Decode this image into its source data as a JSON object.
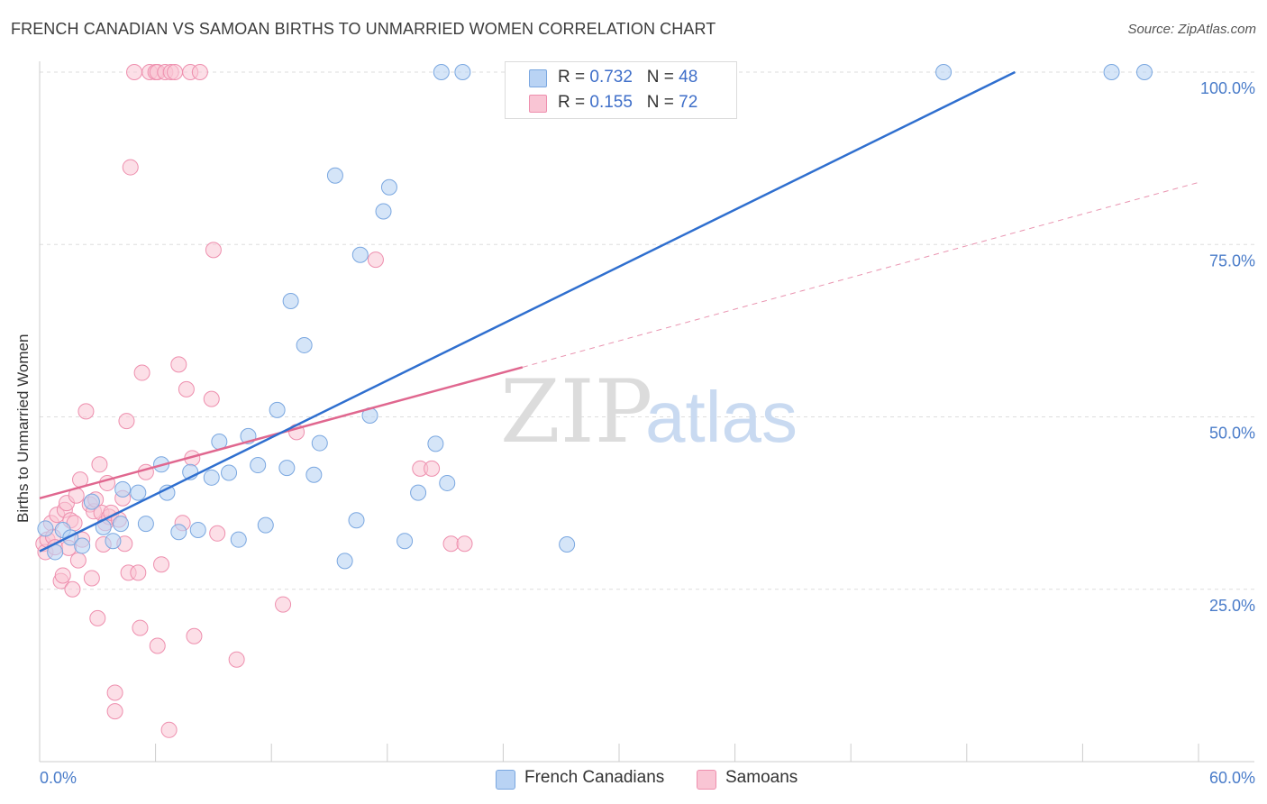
{
  "title": "FRENCH CANADIAN VS SAMOAN BIRTHS TO UNMARRIED WOMEN CORRELATION CHART",
  "source": "Source: ZipAtlas.com",
  "watermark": {
    "zip": "ZIP",
    "atlas": "atlas"
  },
  "legend": {
    "r_label": "R =",
    "n_label": "N =",
    "french_r": "0.732",
    "french_n": "48",
    "samoan_r": "0.155",
    "samoan_n": "72"
  },
  "bottom_legend": {
    "french": "French Canadians",
    "samoan": "Samoans"
  },
  "colors": {
    "french_fill": "#b9d3f4",
    "french_stroke": "#7aa7e0",
    "french_line": "#2f6fcf",
    "samoan_fill": "#f9c5d4",
    "samoan_stroke": "#ee8fae",
    "samoan_line": "#e0678f",
    "axis_text": "#4a7cc9",
    "grid": "#dddddd"
  },
  "chart_data": {
    "type": "scatter",
    "title": "FRENCH CANADIAN VS SAMOAN BIRTHS TO UNMARRIED WOMEN CORRELATION CHART",
    "xlabel": "",
    "ylabel": "Births to Unmarried Women",
    "xlim": [
      0,
      60
    ],
    "ylim": [
      0,
      100
    ],
    "x_tick_labels": [
      "0.0%",
      "60.0%"
    ],
    "y_tick_labels": [
      "25.0%",
      "50.0%",
      "75.0%",
      "100.0%"
    ],
    "y_ticks": [
      25,
      50,
      75,
      100
    ],
    "grid": true,
    "legend_position": "top-center",
    "series": [
      {
        "name": "French Canadians",
        "r": 0.732,
        "n": 48,
        "trend": {
          "x0": 0,
          "y0": 30.5,
          "x1": 50.5,
          "y1": 100
        },
        "points": [
          [
            0.3,
            33.8
          ],
          [
            0.8,
            30.4
          ],
          [
            1.2,
            33.6
          ],
          [
            1.6,
            32.5
          ],
          [
            2.2,
            31.3
          ],
          [
            3.3,
            34.0
          ],
          [
            2.7,
            37.7
          ],
          [
            3.8,
            32.0
          ],
          [
            4.2,
            34.5
          ],
          [
            4.3,
            39.5
          ],
          [
            5.5,
            34.5
          ],
          [
            5.1,
            39.0
          ],
          [
            6.3,
            43.1
          ],
          [
            6.6,
            39.0
          ],
          [
            7.2,
            33.3
          ],
          [
            7.8,
            42.0
          ],
          [
            8.2,
            33.6
          ],
          [
            8.9,
            41.2
          ],
          [
            9.3,
            46.4
          ],
          [
            9.8,
            41.9
          ],
          [
            10.3,
            32.2
          ],
          [
            10.8,
            47.2
          ],
          [
            11.3,
            43.0
          ],
          [
            11.7,
            34.3
          ],
          [
            12.3,
            51.0
          ],
          [
            12.8,
            42.6
          ],
          [
            13.0,
            66.8
          ],
          [
            13.7,
            60.4
          ],
          [
            14.2,
            41.6
          ],
          [
            14.5,
            46.2
          ],
          [
            15.3,
            85.0
          ],
          [
            16.4,
            35.0
          ],
          [
            15.8,
            29.1
          ],
          [
            16.6,
            73.5
          ],
          [
            17.1,
            50.2
          ],
          [
            17.8,
            79.8
          ],
          [
            18.1,
            83.3
          ],
          [
            18.9,
            32.0
          ],
          [
            19.6,
            39.0
          ],
          [
            20.5,
            46.1
          ],
          [
            21.1,
            40.4
          ],
          [
            20.8,
            100
          ],
          [
            21.9,
            100
          ],
          [
            27.3,
            31.5
          ],
          [
            34.5,
            100
          ],
          [
            46.8,
            100
          ],
          [
            55.5,
            100
          ],
          [
            57.2,
            100
          ]
        ]
      },
      {
        "name": "Samoans",
        "r": 0.155,
        "n": 72,
        "trend": {
          "x0": 0,
          "y0": 38.2,
          "x1": 25,
          "y1": 57.2,
          "ext_x1": 60,
          "ext_y1": 84.0
        },
        "points": [
          [
            0.2,
            31.6
          ],
          [
            0.3,
            30.4
          ],
          [
            0.4,
            32.2
          ],
          [
            0.6,
            34.6
          ],
          [
            0.7,
            32.6
          ],
          [
            0.8,
            31.1
          ],
          [
            0.9,
            35.8
          ],
          [
            1.1,
            26.2
          ],
          [
            1.2,
            27.0
          ],
          [
            1.3,
            36.5
          ],
          [
            1.4,
            37.5
          ],
          [
            1.5,
            31.0
          ],
          [
            1.6,
            35.0
          ],
          [
            1.7,
            25.0
          ],
          [
            1.8,
            34.6
          ],
          [
            1.9,
            38.6
          ],
          [
            2.0,
            29.2
          ],
          [
            2.1,
            40.9
          ],
          [
            2.2,
            32.2
          ],
          [
            2.4,
            50.8
          ],
          [
            2.6,
            37.3
          ],
          [
            2.7,
            26.6
          ],
          [
            2.8,
            36.3
          ],
          [
            2.9,
            38.0
          ],
          [
            3.0,
            20.8
          ],
          [
            3.1,
            43.1
          ],
          [
            3.2,
            36.1
          ],
          [
            3.3,
            31.5
          ],
          [
            3.4,
            34.6
          ],
          [
            3.5,
            40.4
          ],
          [
            3.6,
            35.5
          ],
          [
            3.7,
            36.1
          ],
          [
            3.9,
            10.0
          ],
          [
            3.9,
            7.3
          ],
          [
            4.1,
            35.1
          ],
          [
            4.3,
            38.2
          ],
          [
            4.4,
            31.6
          ],
          [
            4.5,
            49.4
          ],
          [
            4.6,
            27.4
          ],
          [
            4.7,
            86.2
          ],
          [
            4.9,
            100
          ],
          [
            5.1,
            27.4
          ],
          [
            5.2,
            19.4
          ],
          [
            5.3,
            56.4
          ],
          [
            5.5,
            42.0
          ],
          [
            5.7,
            100
          ],
          [
            6.0,
            100
          ],
          [
            6.1,
            100
          ],
          [
            6.1,
            16.8
          ],
          [
            6.3,
            28.6
          ],
          [
            6.5,
            100
          ],
          [
            6.7,
            4.6
          ],
          [
            6.8,
            100
          ],
          [
            7.0,
            100
          ],
          [
            7.2,
            57.6
          ],
          [
            7.4,
            34.6
          ],
          [
            7.6,
            54.0
          ],
          [
            7.8,
            100
          ],
          [
            7.9,
            44.0
          ],
          [
            8.0,
            18.2
          ],
          [
            8.3,
            100
          ],
          [
            8.9,
            52.6
          ],
          [
            9.0,
            74.2
          ],
          [
            9.2,
            33.1
          ],
          [
            10.2,
            14.8
          ],
          [
            12.6,
            22.8
          ],
          [
            13.3,
            47.8
          ],
          [
            17.4,
            72.8
          ],
          [
            19.7,
            42.5
          ],
          [
            20.3,
            42.5
          ],
          [
            21.3,
            31.6
          ],
          [
            22.0,
            31.6
          ]
        ]
      }
    ]
  }
}
